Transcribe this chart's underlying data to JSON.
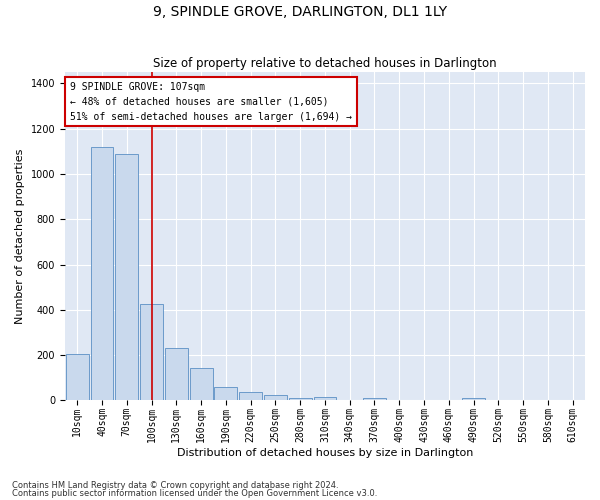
{
  "title": "9, SPINDLE GROVE, DARLINGTON, DL1 1LY",
  "subtitle": "Size of property relative to detached houses in Darlington",
  "xlabel": "Distribution of detached houses by size in Darlington",
  "ylabel": "Number of detached properties",
  "footnote1": "Contains HM Land Registry data © Crown copyright and database right 2024.",
  "footnote2": "Contains public sector information licensed under the Open Government Licence v3.0.",
  "bar_color": "#c9d9ed",
  "bar_edge_color": "#5b8fc4",
  "background_color": "#e0e8f4",
  "categories": [
    "10sqm",
    "40sqm",
    "70sqm",
    "100sqm",
    "130sqm",
    "160sqm",
    "190sqm",
    "220sqm",
    "250sqm",
    "280sqm",
    "310sqm",
    "340sqm",
    "370sqm",
    "400sqm",
    "430sqm",
    "460sqm",
    "490sqm",
    "520sqm",
    "550sqm",
    "580sqm",
    "610sqm"
  ],
  "values": [
    205,
    1120,
    1090,
    425,
    230,
    145,
    58,
    38,
    22,
    12,
    15,
    0,
    12,
    0,
    0,
    0,
    12,
    0,
    0,
    0,
    0
  ],
  "ylim": [
    0,
    1450
  ],
  "yticks": [
    0,
    200,
    400,
    600,
    800,
    1000,
    1200,
    1400
  ],
  "vline_x": 3,
  "annotation_title": "9 SPINDLE GROVE: 107sqm",
  "annotation_line1": "← 48% of detached houses are smaller (1,605)",
  "annotation_line2": "51% of semi-detached houses are larger (1,694) →",
  "annotation_box_color": "#ffffff",
  "annotation_border_color": "#cc0000",
  "vline_color": "#cc0000",
  "title_fontsize": 10,
  "subtitle_fontsize": 8.5,
  "xlabel_fontsize": 8,
  "ylabel_fontsize": 8,
  "tick_fontsize": 7,
  "annot_fontsize": 7,
  "footnote_fontsize": 6
}
